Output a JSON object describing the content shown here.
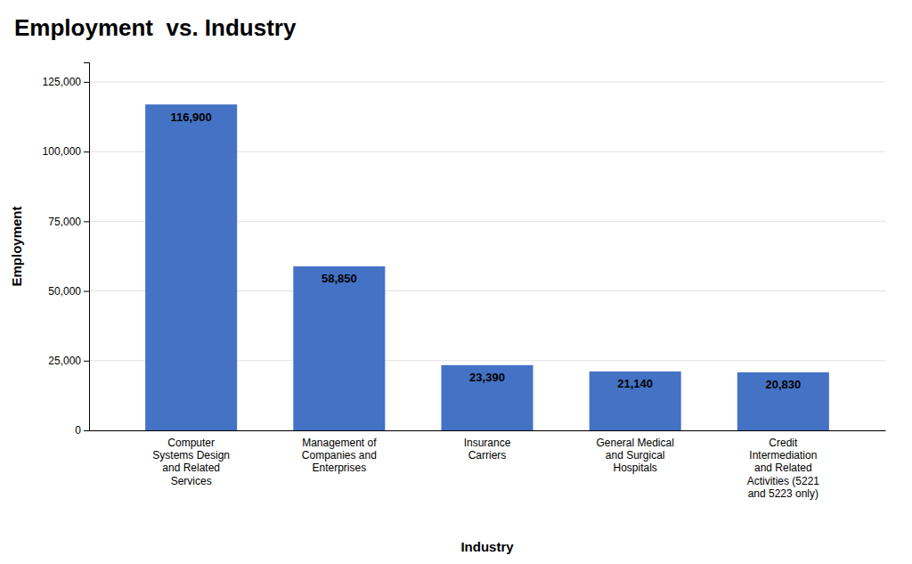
{
  "chart_data": {
    "type": "bar",
    "title": "Employment  vs. Industry",
    "xlabel": "Industry",
    "ylabel": "Employment",
    "categories": [
      "Computer\nSystems Design\nand Related\nServices",
      "Management of\nCompanies and\nEnterprises",
      "Insurance\nCarriers",
      "General Medical\nand Surgical\nHospitals",
      "Credit\nIntermediation\nand Related\nActivities (5221\nand 5223 only)"
    ],
    "values": [
      116900,
      58850,
      23390,
      21140,
      20830
    ],
    "value_labels": [
      "116,900",
      "58,850",
      "23,390",
      "21,140",
      "20,830"
    ],
    "data_labels": true,
    "color": "#4472C4",
    "ylim": [
      0,
      132000
    ],
    "yticks": [
      0,
      {
        "value": 25000,
        "label": "25,000"
      },
      {
        "value": 50000,
        "label": "50,000"
      },
      {
        "value": 75000,
        "label": "75,000"
      },
      {
        "value": 100000,
        "label": "100,000"
      },
      {
        "value": 125000,
        "label": "125,000"
      }
    ],
    "grid": true
  }
}
